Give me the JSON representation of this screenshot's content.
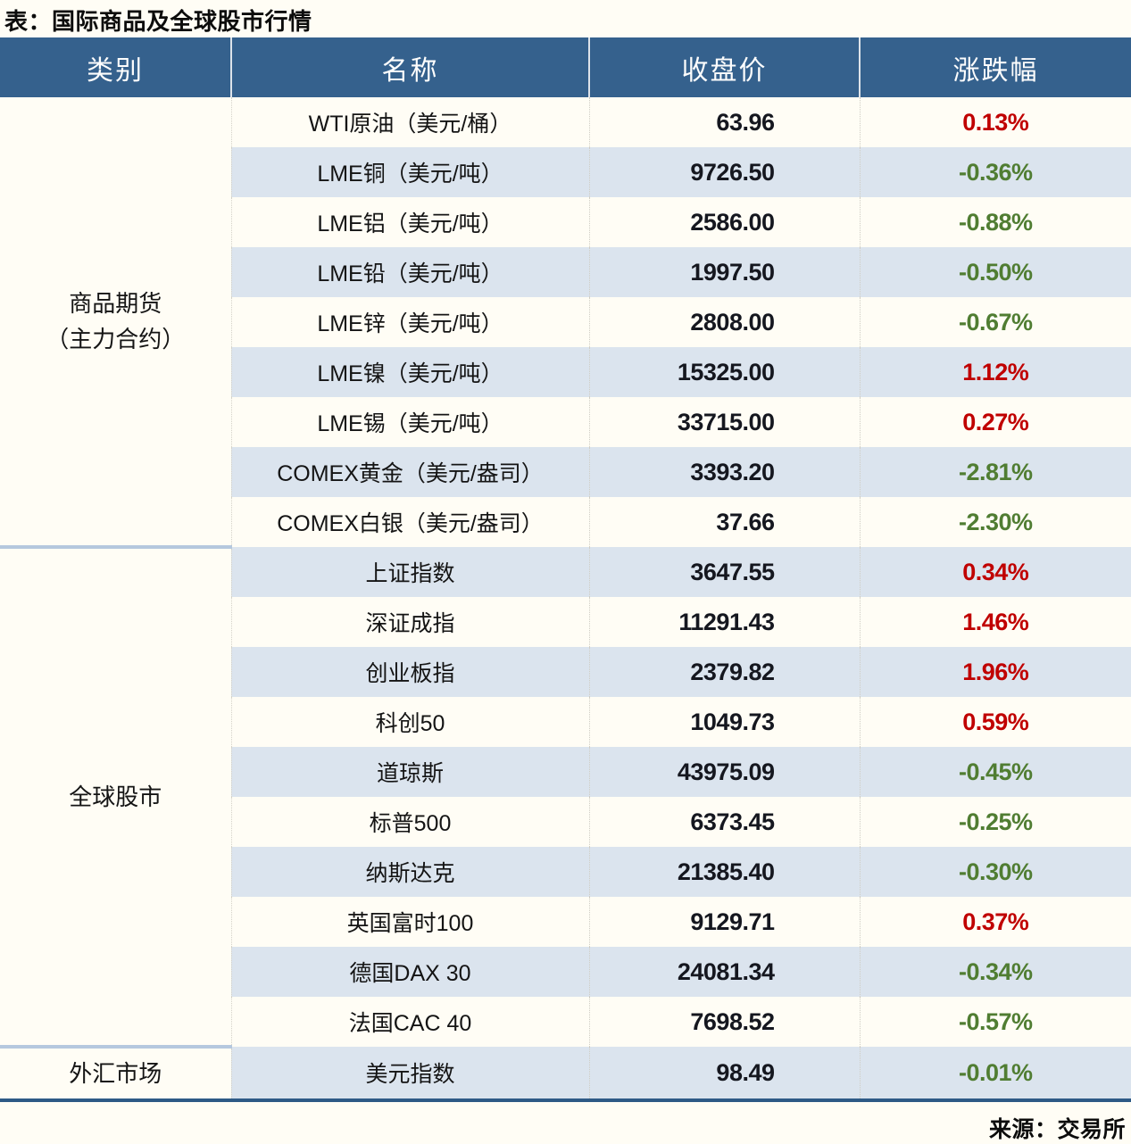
{
  "title": "表：国际商品及全球股市行情",
  "source": "来源：交易所",
  "colors": {
    "header_bg": "#35618d",
    "band_row": "#dbe4ee",
    "up_red": "#c00000",
    "down_green": "#507d32",
    "section_divider": "#b5c8de",
    "table_bottom_border": "#2e5a86"
  },
  "chart_data": {
    "type": "table",
    "title": "表：国际商品及全球股市行情",
    "columns": [
      "类别",
      "名称",
      "收盘价",
      "涨跌幅"
    ],
    "source": "来源：交易所",
    "sections": [
      {
        "label_lines": [
          "商品期货",
          "（主力合约）"
        ],
        "rows": [
          {
            "name": "WTI原油（美元/桶）",
            "close": "63.96",
            "change": "0.13%"
          },
          {
            "name": "LME铜（美元/吨）",
            "close": "9726.50",
            "change": "-0.36%"
          },
          {
            "name": "LME铝（美元/吨）",
            "close": "2586.00",
            "change": "-0.88%"
          },
          {
            "name": "LME铅（美元/吨）",
            "close": "1997.50",
            "change": "-0.50%"
          },
          {
            "name": "LME锌（美元/吨）",
            "close": "2808.00",
            "change": "-0.67%"
          },
          {
            "name": "LME镍（美元/吨）",
            "close": "15325.00",
            "change": "1.12%"
          },
          {
            "name": "LME锡（美元/吨）",
            "close": "33715.00",
            "change": "0.27%"
          },
          {
            "name": "COMEX黄金（美元/盎司）",
            "close": "3393.20",
            "change": "-2.81%"
          },
          {
            "name": "COMEX白银（美元/盎司）",
            "close": "37.66",
            "change": "-2.30%"
          }
        ]
      },
      {
        "label_lines": [
          "全球股市"
        ],
        "rows": [
          {
            "name": "上证指数",
            "close": "3647.55",
            "change": "0.34%"
          },
          {
            "name": "深证成指",
            "close": "11291.43",
            "change": "1.46%"
          },
          {
            "name": "创业板指",
            "close": "2379.82",
            "change": "1.96%"
          },
          {
            "name": "科创50",
            "close": "1049.73",
            "change": "0.59%"
          },
          {
            "name": "道琼斯",
            "close": "43975.09",
            "change": "-0.45%"
          },
          {
            "name": "标普500",
            "close": "6373.45",
            "change": "-0.25%"
          },
          {
            "name": "纳斯达克",
            "close": "21385.40",
            "change": "-0.30%"
          },
          {
            "name": "英国富时100",
            "close": "9129.71",
            "change": "0.37%"
          },
          {
            "name": "德国DAX 30",
            "close": "24081.34",
            "change": "-0.34%"
          },
          {
            "name": "法国CAC 40",
            "close": "7698.52",
            "change": "-0.57%"
          }
        ]
      },
      {
        "label_lines": [
          "外汇市场"
        ],
        "rows": [
          {
            "name": "美元指数",
            "close": "98.49",
            "change": "-0.01%"
          }
        ]
      }
    ]
  }
}
